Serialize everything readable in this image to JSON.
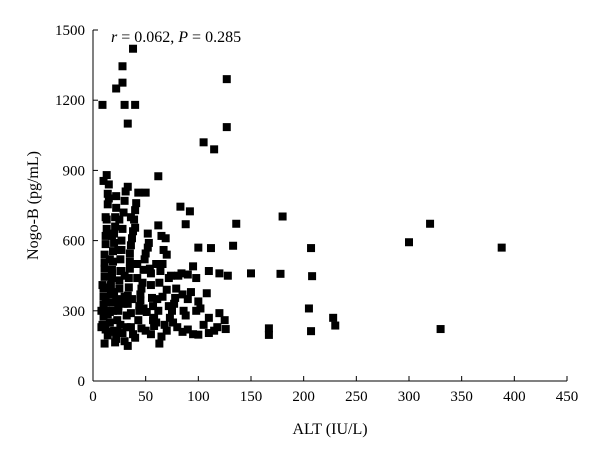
{
  "chart_data": {
    "type": "scatter",
    "title": "",
    "xlabel": "ALT (IU/L)",
    "ylabel": "Nogo-B (pg/mL)",
    "annotation": {
      "r_symbol": "r",
      "r_text": " = 0.062, ",
      "p_symbol": "P",
      "p_text": " = 0.285"
    },
    "xlim": [
      0,
      450
    ],
    "ylim": [
      0,
      1500
    ],
    "xticks": [
      0,
      50,
      100,
      150,
      200,
      250,
      300,
      350,
      400,
      450
    ],
    "yticks": [
      0,
      300,
      600,
      900,
      1200,
      1500
    ],
    "grid": false,
    "legend": "none",
    "marker": "square",
    "color": "#000000",
    "series": [
      {
        "points": [
          [
            38,
            1420
          ],
          [
            28,
            1345
          ],
          [
            28,
            1275
          ],
          [
            22,
            1250
          ],
          [
            9,
            1180
          ],
          [
            30,
            1180
          ],
          [
            40,
            1180
          ],
          [
            127,
            1290
          ],
          [
            33,
            1100
          ],
          [
            127,
            1085
          ],
          [
            105,
            1020
          ],
          [
            115,
            990
          ],
          [
            13,
            880
          ],
          [
            10,
            855
          ],
          [
            62,
            875
          ],
          [
            43,
            805
          ],
          [
            50,
            805
          ],
          [
            33,
            830
          ],
          [
            22,
            790
          ],
          [
            15,
            780
          ],
          [
            83,
            745
          ],
          [
            92,
            725
          ],
          [
            88,
            670
          ],
          [
            62,
            665
          ],
          [
            136,
            672
          ],
          [
            180,
            703
          ],
          [
            320,
            672
          ],
          [
            300,
            593
          ],
          [
            388,
            570
          ],
          [
            207,
            568
          ],
          [
            12,
            700
          ],
          [
            25,
            690
          ],
          [
            36,
            700
          ],
          [
            40,
            655
          ],
          [
            52,
            630
          ],
          [
            65,
            620
          ],
          [
            70,
            540
          ],
          [
            100,
            570
          ],
          [
            112,
            568
          ],
          [
            133,
            578
          ],
          [
            60,
            500
          ],
          [
            95,
            490
          ],
          [
            110,
            470
          ],
          [
            120,
            460
          ],
          [
            128,
            450
          ],
          [
            150,
            460
          ],
          [
            178,
            458
          ],
          [
            208,
            448
          ],
          [
            9,
            410
          ],
          [
            11,
            505
          ],
          [
            18,
            460
          ],
          [
            27,
            470
          ],
          [
            35,
            480
          ],
          [
            42,
            500
          ],
          [
            55,
            460
          ],
          [
            72,
            440
          ],
          [
            84,
            460
          ],
          [
            90,
            455
          ],
          [
            98,
            440
          ],
          [
            12,
            355
          ],
          [
            20,
            380
          ],
          [
            30,
            360
          ],
          [
            45,
            370
          ],
          [
            56,
            355
          ],
          [
            78,
            355
          ],
          [
            85,
            370
          ],
          [
            90,
            350
          ],
          [
            100,
            340
          ],
          [
            108,
            375
          ],
          [
            8,
            300
          ],
          [
            14,
            285
          ],
          [
            24,
            300
          ],
          [
            36,
            290
          ],
          [
            48,
            310
          ],
          [
            62,
            300
          ],
          [
            75,
            300
          ],
          [
            88,
            280
          ],
          [
            98,
            300
          ],
          [
            110,
            270
          ],
          [
            120,
            290
          ],
          [
            205,
            310
          ],
          [
            228,
            270
          ],
          [
            8,
            230
          ],
          [
            12,
            220
          ],
          [
            18,
            210
          ],
          [
            26,
            240
          ],
          [
            36,
            230
          ],
          [
            46,
            225
          ],
          [
            58,
            235
          ],
          [
            68,
            240
          ],
          [
            80,
            230
          ],
          [
            90,
            220
          ],
          [
            105,
            240
          ],
          [
            118,
            230
          ],
          [
            126,
            222
          ],
          [
            167,
            225
          ],
          [
            167,
            197
          ],
          [
            207,
            213
          ],
          [
            230,
            237
          ],
          [
            330,
            222
          ],
          [
            14,
            195
          ],
          [
            22,
            180
          ],
          [
            30,
            170
          ],
          [
            40,
            185
          ],
          [
            55,
            200
          ],
          [
            65,
            190
          ],
          [
            100,
            198
          ],
          [
            110,
            205
          ],
          [
            11,
            160
          ],
          [
            21,
            165
          ],
          [
            33,
            150
          ],
          [
            63,
            160
          ],
          [
            9,
            240
          ],
          [
            10,
            275
          ],
          [
            10,
            325
          ],
          [
            10,
            360
          ],
          [
            10,
            395
          ],
          [
            11,
            445
          ],
          [
            11,
            480
          ],
          [
            11,
            540
          ],
          [
            12,
            585
          ],
          [
            12,
            620
          ],
          [
            13,
            650
          ],
          [
            13,
            690
          ],
          [
            14,
            755
          ],
          [
            14,
            800
          ],
          [
            15,
            840
          ],
          [
            16,
            250
          ],
          [
            16,
            295
          ],
          [
            17,
            335
          ],
          [
            17,
            370
          ],
          [
            17,
            410
          ],
          [
            18,
            440
          ],
          [
            18,
            475
          ],
          [
            19,
            510
          ],
          [
            19,
            555
          ],
          [
            20,
            590
          ],
          [
            20,
            630
          ],
          [
            21,
            660
          ],
          [
            21,
            700
          ],
          [
            22,
            740
          ],
          [
            23,
            210
          ],
          [
            23,
            260
          ],
          [
            24,
            320
          ],
          [
            24,
            350
          ],
          [
            25,
            395
          ],
          [
            25,
            430
          ],
          [
            26,
            470
          ],
          [
            26,
            520
          ],
          [
            27,
            560
          ],
          [
            27,
            600
          ],
          [
            28,
            650
          ],
          [
            29,
            720
          ],
          [
            30,
            770
          ],
          [
            31,
            810
          ],
          [
            32,
            230
          ],
          [
            32,
            280
          ],
          [
            33,
            330
          ],
          [
            33,
            365
          ],
          [
            34,
            400
          ],
          [
            34,
            440
          ],
          [
            35,
            510
          ],
          [
            35,
            545
          ],
          [
            36,
            580
          ],
          [
            37,
            610
          ],
          [
            38,
            640
          ],
          [
            39,
            690
          ],
          [
            40,
            730
          ],
          [
            41,
            760
          ],
          [
            43,
            260
          ],
          [
            44,
            300
          ],
          [
            45,
            345
          ],
          [
            46,
            395
          ],
          [
            47,
            420
          ],
          [
            48,
            475
          ],
          [
            49,
            520
          ],
          [
            50,
            545
          ],
          [
            52,
            570
          ],
          [
            53,
            590
          ],
          [
            54,
            480
          ],
          [
            55,
            410
          ],
          [
            57,
            320
          ],
          [
            58,
            270
          ],
          [
            60,
            250
          ],
          [
            61,
            350
          ],
          [
            63,
            420
          ],
          [
            64,
            470
          ],
          [
            66,
            500
          ],
          [
            67,
            560
          ],
          [
            69,
            610
          ],
          [
            70,
            390
          ],
          [
            72,
            320
          ],
          [
            73,
            270
          ],
          [
            76,
            250
          ],
          [
            77,
            330
          ],
          [
            79,
            395
          ],
          [
            81,
            450
          ],
          [
            20,
            215
          ],
          [
            28,
            205
          ],
          [
            38,
            200
          ],
          [
            50,
            215
          ],
          [
            70,
            215
          ],
          [
            85,
            210
          ],
          [
            95,
            200
          ],
          [
            115,
            215
          ],
          [
            125,
            260
          ],
          [
            102,
            310
          ],
          [
            93,
            380
          ],
          [
            86,
            300
          ],
          [
            74,
            450
          ],
          [
            66,
            360
          ],
          [
            19,
            300
          ],
          [
            29,
            330
          ],
          [
            37,
            350
          ],
          [
            44,
            320
          ],
          [
            51,
            295
          ],
          [
            57,
            260
          ],
          [
            42,
            440
          ],
          [
            30,
            450
          ],
          [
            24,
            560
          ],
          [
            18,
            620
          ],
          [
            16,
            520
          ],
          [
            14,
            400
          ],
          [
            12,
            300
          ],
          [
            22,
            345
          ]
        ]
      }
    ]
  }
}
